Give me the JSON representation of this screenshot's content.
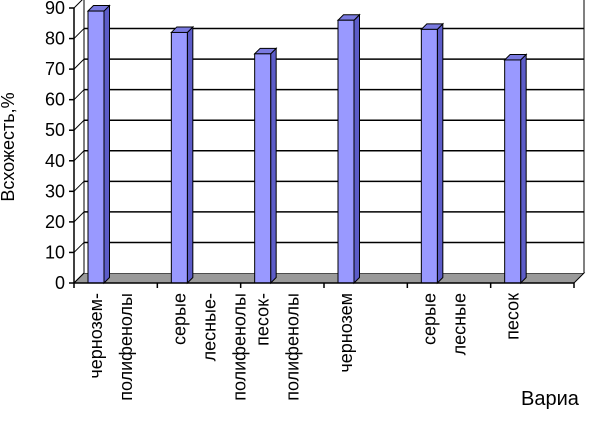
{
  "chart_data": {
    "type": "bar",
    "title": "",
    "ylabel": "Всхожесть,%",
    "xlabel": "Вариа",
    "ylim": [
      0,
      90
    ],
    "yticks": [
      0,
      10,
      20,
      30,
      40,
      50,
      60,
      70,
      80,
      90
    ],
    "grid": true,
    "legend": "none",
    "bar_color": "#9999ff",
    "bar_side_color": "#5c5cc8",
    "bar_top_color": "#7a7ae0",
    "categories": [
      [
        "чернозем-",
        "полифенолы"
      ],
      [
        "серые",
        "лесные-",
        "полифенолы"
      ],
      [
        "песок-",
        "полифенолы"
      ],
      [
        "чернозем"
      ],
      [
        "серые",
        "лесные"
      ],
      [
        "песок"
      ]
    ],
    "values": [
      89,
      82,
      75,
      86,
      83,
      73
    ]
  }
}
